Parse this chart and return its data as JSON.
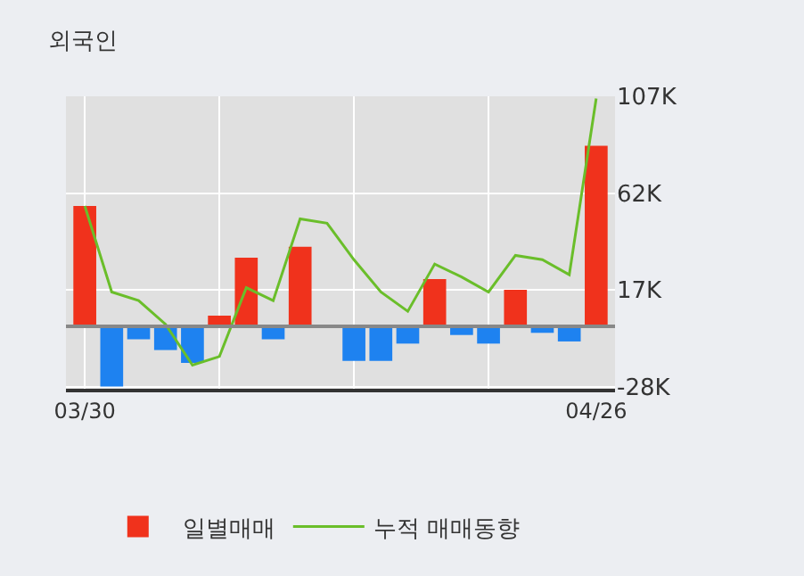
{
  "chart_data": {
    "type": "bar",
    "title": "외국인",
    "categories": [
      "03/30",
      null,
      null,
      null,
      null,
      null,
      null,
      null,
      null,
      null,
      null,
      null,
      null,
      null,
      null,
      null,
      null,
      null,
      null,
      "04/26"
    ],
    "series": [
      {
        "name": "일별매매",
        "colors": [
          "#f0321c",
          "#1e82f0",
          "#1e82f0",
          "#1e82f0",
          "#1e82f0",
          "#f0321c",
          "#f0321c",
          "#1e82f0",
          "#f0321c",
          "#f0321c",
          "#1e82f0",
          "#1e82f0",
          "#1e82f0",
          "#f0321c",
          "#1e82f0",
          "#1e82f0",
          "#f0321c",
          "#1e82f0",
          "#1e82f0",
          "#f0321c"
        ],
        "values": [
          56000,
          -28000,
          -6000,
          -11000,
          -17000,
          5000,
          32000,
          -6000,
          37000,
          0,
          -16000,
          -16000,
          -8000,
          22000,
          -4000,
          -8000,
          17000,
          -3000,
          -7000,
          84000
        ]
      },
      {
        "name": "누적 매매동향",
        "type": "line",
        "color": "#6abe2a",
        "values": [
          56000,
          16000,
          12000,
          1000,
          -18000,
          -14000,
          18000,
          12000,
          50000,
          48000,
          31000,
          16000,
          7000,
          29000,
          23000,
          16000,
          33000,
          31000,
          24000,
          106000
        ]
      }
    ],
    "ylim": [
      -29000,
      107000
    ],
    "yticks": [
      {
        "value": 107000,
        "label": "107K"
      },
      {
        "value": 62000,
        "label": "62K"
      },
      {
        "value": 17000,
        "label": "17K"
      },
      {
        "value": -28000,
        "label": "-28K"
      }
    ],
    "ref_lines": [
      {
        "axis": "y",
        "value": 0,
        "color": "#888888"
      }
    ],
    "grid": true,
    "legend": "bottom",
    "marker": "none",
    "line_style": "solid"
  }
}
